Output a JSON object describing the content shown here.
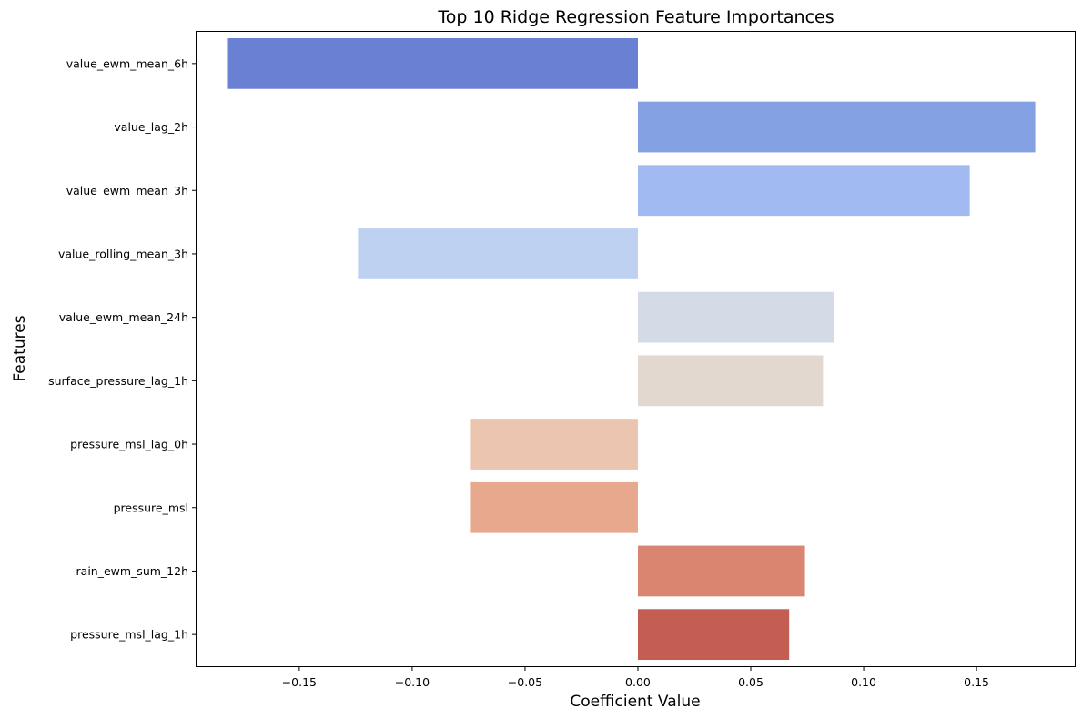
{
  "chart_data": {
    "type": "bar",
    "orientation": "horizontal",
    "title": "Top 10 Ridge Regression Feature Importances",
    "xlabel": "Coefficient Value",
    "ylabel": "Features",
    "xlim": [
      -0.1955,
      0.1935
    ],
    "xticks": [
      -0.15,
      -0.1,
      -0.05,
      0.0,
      0.05,
      0.1,
      0.15
    ],
    "xtick_labels": [
      "−0.15",
      "−0.10",
      "−0.05",
      "0.00",
      "0.05",
      "0.10",
      "0.15"
    ],
    "grid": false,
    "categories": [
      "value_ewm_mean_6h",
      "value_lag_2h",
      "value_ewm_mean_3h",
      "value_rolling_mean_3h",
      "value_ewm_mean_24h",
      "surface_pressure_lag_1h",
      "pressure_msl_lag_0h",
      "pressure_msl",
      "rain_ewm_sum_12h",
      "pressure_msl_lag_1h"
    ],
    "values": [
      -0.182,
      0.176,
      0.147,
      -0.124,
      0.087,
      0.082,
      -0.074,
      -0.074,
      0.074,
      0.067
    ],
    "colors": [
      "#6a80d3",
      "#84a1e4",
      "#a1bbf2",
      "#bed1f1",
      "#d5dbe6",
      "#e3d8cf",
      "#ebc5b0",
      "#e8a88e",
      "#d9856f",
      "#c45e53"
    ]
  }
}
